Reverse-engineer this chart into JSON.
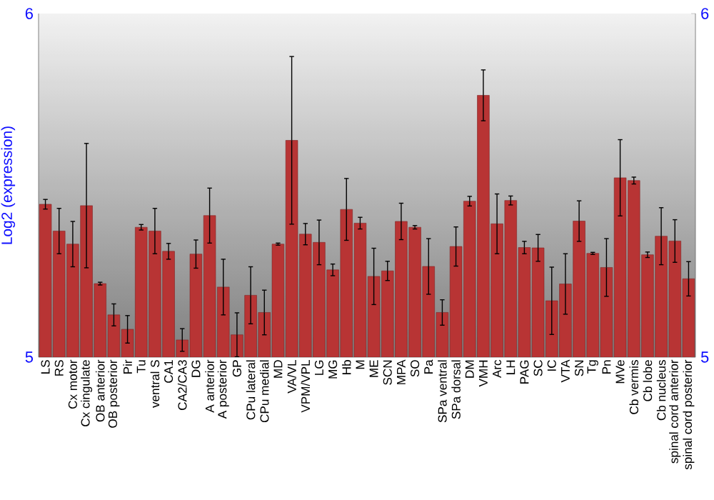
{
  "chart_data": {
    "type": "bar",
    "ylabel": "Log2 (expression)",
    "color": "#b83434",
    "categories": [
      "LS",
      "RS",
      "Cx motor",
      "Cx cingulate",
      "OB anterior",
      "OB posterior",
      "Pir",
      "Tu",
      "ventral S",
      "CA1",
      "CA2/CA3",
      "DG",
      "A anterior",
      "A posterior",
      "GP",
      "CPu lateral",
      "CPu medial",
      "MD",
      "VA/VL",
      "VPM/VPL",
      "LG",
      "MG",
      "Hb",
      "M",
      "ME",
      "SCN",
      "MPA",
      "SO",
      "Pa",
      "SPa ventral",
      "SPa dorsal",
      "DM",
      "VMH",
      "Arc",
      "LH",
      "PAG",
      "SC",
      "IC",
      "VTA",
      "SN",
      "Tg",
      "Pn",
      "MVe",
      "Cb vermis",
      "Cb lobe",
      "Cb nucleus",
      "spinal cord anterior",
      "spinal cord posterior"
    ],
    "values": [
      5.445,
      5.367,
      5.329,
      5.441,
      5.214,
      5.123,
      5.081,
      5.378,
      5.367,
      5.308,
      5.05,
      5.3,
      5.412,
      5.204,
      5.065,
      5.18,
      5.13,
      5.329,
      5.631,
      5.358,
      5.334,
      5.254,
      5.43,
      5.39,
      5.235,
      5.251,
      5.395,
      5.378,
      5.264,
      5.13,
      5.322,
      5.454,
      5.762,
      5.388,
      5.456,
      5.319,
      5.318,
      5.164,
      5.213,
      5.396,
      5.302,
      5.261,
      5.522,
      5.514,
      5.298,
      5.352,
      5.338,
      5.228
    ],
    "errors": [
      0.014,
      0.066,
      0.066,
      0.181,
      0.004,
      0.032,
      0.04,
      0.008,
      0.066,
      0.023,
      0.033,
      0.041,
      0.08,
      0.081,
      0.064,
      0.083,
      0.065,
      0.003,
      0.244,
      0.031,
      0.065,
      0.017,
      0.09,
      0.017,
      0.082,
      0.028,
      0.053,
      0.005,
      0.081,
      0.037,
      0.057,
      0.014,
      0.074,
      0.087,
      0.013,
      0.018,
      0.039,
      0.098,
      0.088,
      0.059,
      0.003,
      0.084,
      0.111,
      0.01,
      0.008,
      0.083,
      0.062,
      0.05
    ],
    "ylim": [
      5,
      6
    ],
    "yticks": [
      5,
      6
    ],
    "y2lim": [
      5,
      6
    ],
    "y2ticks": [
      5,
      6
    ]
  }
}
